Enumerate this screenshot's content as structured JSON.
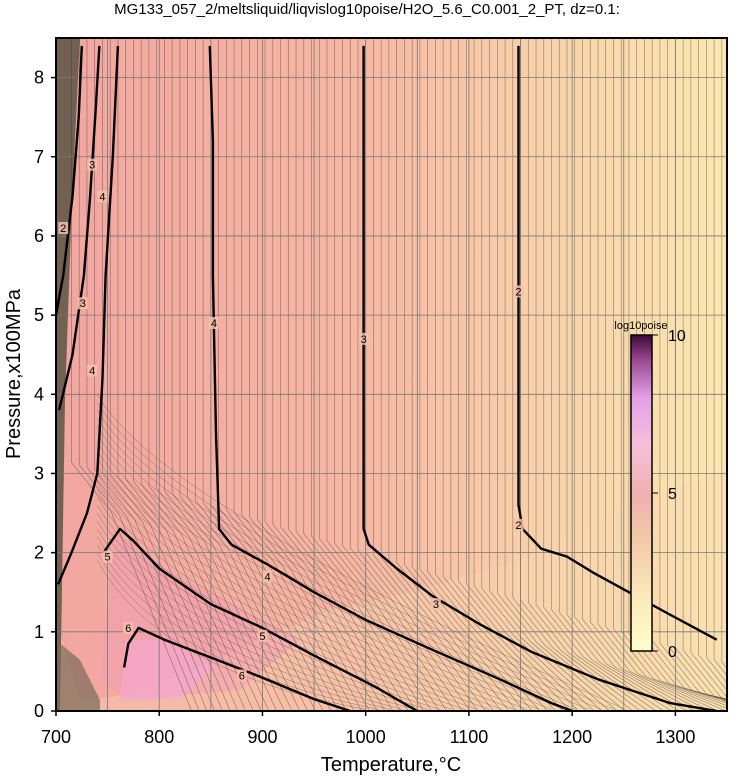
{
  "title": "MG133_057_2/meltsliquid/liqvislog10poise/H2O_5.6_C0.001_2_PT, dz=0.1:",
  "chart_data": {
    "type": "heatmap",
    "title": "MG133_057_2/meltsliquid/liqvislog10poise/H2O_5.6_C0.001_2_PT, dz=0.1:",
    "xlabel": "Temperature,°C",
    "ylabel": "Pressure,x100MPa",
    "xlim": [
      700,
      1350
    ],
    "ylim": [
      0,
      8.5
    ],
    "x_ticks": [
      "700",
      "800",
      "900",
      "1000",
      "1100",
      "1200",
      "1300"
    ],
    "y_ticks": [
      "0",
      "1",
      "2",
      "3",
      "4",
      "5",
      "6",
      "7",
      "8"
    ],
    "grid": true,
    "contour_interval": 0.1,
    "colorbar": {
      "title": "log10poise",
      "ticks": [
        "0",
        "5",
        "10"
      ],
      "range": [
        0,
        10
      ],
      "colors": [
        "#ffffcc",
        "#f9e7b8",
        "#f2c9a8",
        "#f0b0b0",
        "#f5b0d0",
        "#e4a0e8",
        "#9a4a90",
        "#3a0a38"
      ]
    },
    "bold_contours": [
      {
        "level": 2,
        "points": [
          [
            1148,
            8.4
          ],
          [
            1148,
            7.0
          ],
          [
            1148,
            4.0
          ],
          [
            1148,
            2.6
          ],
          [
            1152,
            2.3
          ],
          [
            1170,
            2.05
          ],
          [
            1195,
            1.95
          ],
          [
            1220,
            1.75
          ],
          [
            1255,
            1.5
          ],
          [
            1290,
            1.25
          ],
          [
            1340,
            0.9
          ]
        ]
      },
      {
        "level": 3,
        "points": [
          [
            998,
            8.4
          ],
          [
            998,
            6.0
          ],
          [
            998,
            4.0
          ],
          [
            998,
            2.3
          ],
          [
            1003,
            2.1
          ],
          [
            1030,
            1.8
          ],
          [
            1065,
            1.45
          ],
          [
            1110,
            1.1
          ],
          [
            1160,
            0.75
          ],
          [
            1225,
            0.4
          ],
          [
            1295,
            0.1
          ],
          [
            1340,
            0.0
          ]
        ]
      },
      {
        "level": 4,
        "points": [
          [
            849,
            8.4
          ],
          [
            852,
            7.2
          ],
          [
            852,
            5.5
          ],
          [
            855,
            3.5
          ],
          [
            858,
            2.3
          ],
          [
            870,
            2.1
          ],
          [
            905,
            1.85
          ],
          [
            950,
            1.5
          ],
          [
            1000,
            1.15
          ],
          [
            1060,
            0.8
          ],
          [
            1130,
            0.4
          ],
          [
            1180,
            0.1
          ],
          [
            1200,
            0.0
          ]
        ]
      },
      {
        "level": 5,
        "points": [
          [
            746,
            2.0
          ],
          [
            762,
            2.3
          ],
          [
            775,
            2.15
          ],
          [
            800,
            1.8
          ],
          [
            850,
            1.35
          ],
          [
            900,
            1.05
          ],
          [
            950,
            0.7
          ],
          [
            1010,
            0.3
          ],
          [
            1050,
            0.0
          ]
        ]
      },
      {
        "level": 6,
        "points": [
          [
            766,
            0.55
          ],
          [
            770,
            0.85
          ],
          [
            780,
            1.05
          ],
          [
            805,
            0.9
          ],
          [
            855,
            0.65
          ],
          [
            900,
            0.42
          ],
          [
            950,
            0.15
          ],
          [
            985,
            0.0
          ]
        ]
      },
      {
        "level": 4,
        "points": [
          [
            742,
            8.4
          ],
          [
            738,
            7.5
          ],
          [
            733,
            6.5
          ],
          [
            727,
            5.5
          ],
          [
            716,
            4.5
          ],
          [
            703,
            3.8
          ]
        ]
      },
      {
        "level": 3,
        "points": [
          [
            725,
            8.4
          ],
          [
            722,
            7.5
          ],
          [
            716,
            6.5
          ],
          [
            707,
            5.5
          ],
          [
            700,
            5.0
          ]
        ]
      },
      {
        "level": 3,
        "points": [
          [
            760,
            8.4
          ],
          [
            755,
            7.0
          ],
          [
            748,
            5.5
          ],
          [
            745,
            4.2
          ],
          [
            740,
            3.0
          ],
          [
            730,
            2.5
          ],
          [
            715,
            2.0
          ],
          [
            702,
            1.6
          ]
        ]
      }
    ],
    "contour_labels": [
      {
        "text": "2",
        "x": 1148,
        "y": 5.3
      },
      {
        "text": "2",
        "x": 1148,
        "y": 2.35
      },
      {
        "text": "3",
        "x": 998,
        "y": 4.7
      },
      {
        "text": "3",
        "x": 1068,
        "y": 1.35
      },
      {
        "text": "4",
        "x": 853,
        "y": 4.9
      },
      {
        "text": "4",
        "x": 905,
        "y": 1.7
      },
      {
        "text": "4",
        "x": 745,
        "y": 6.5
      },
      {
        "text": "4",
        "x": 735,
        "y": 4.3
      },
      {
        "text": "5",
        "x": 750,
        "y": 1.95
      },
      {
        "text": "5",
        "x": 900,
        "y": 0.95
      },
      {
        "text": "6",
        "x": 770,
        "y": 1.05
      },
      {
        "text": "6",
        "x": 880,
        "y": 0.45
      },
      {
        "text": "3",
        "x": 735,
        "y": 6.9
      },
      {
        "text": "2",
        "x": 707,
        "y": 6.1
      },
      {
        "text": "3",
        "x": 726,
        "y": 5.15
      }
    ]
  }
}
